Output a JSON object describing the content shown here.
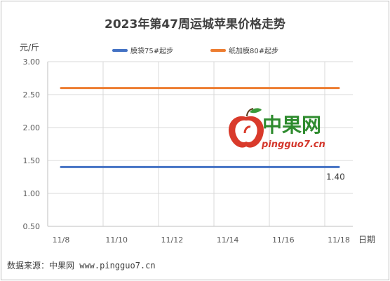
{
  "chart_data": {
    "type": "line",
    "title": "2023年第47周运城苹果价格走势",
    "ylabel": "元/斤",
    "xlabel": "日期",
    "categories": [
      "11/8",
      "11/9",
      "11/10",
      "11/11",
      "11/12",
      "11/13",
      "11/14",
      "11/15",
      "11/16",
      "11/17",
      "11/18"
    ],
    "x_tick_labels": [
      "11/8",
      "11/10",
      "11/12",
      "11/14",
      "11/16",
      "11/18"
    ],
    "y_tick_labels": [
      "0.50",
      "1.00",
      "1.50",
      "2.00",
      "2.50",
      "3.00"
    ],
    "ylim": [
      0.5,
      3.0
    ],
    "grid": true,
    "legend_position": "top",
    "series": [
      {
        "name": "膜袋75#起步",
        "color": "#4472c4",
        "values": [
          1.4,
          1.4,
          1.4,
          1.4,
          1.4,
          1.4,
          1.4,
          1.4,
          1.4,
          1.4,
          1.4
        ],
        "end_label": "1.40"
      },
      {
        "name": "纸加膜80#起步",
        "color": "#ed7d31",
        "values": [
          2.6,
          2.6,
          2.6,
          2.6,
          2.6,
          2.6,
          2.6,
          2.6,
          2.6,
          2.6,
          2.6
        ]
      }
    ]
  },
  "watermark": {
    "text_cn": "中果网",
    "text_en": "pingguo7.cn"
  },
  "source_text": "数据来源：中果网 www.pingguo7.cn"
}
